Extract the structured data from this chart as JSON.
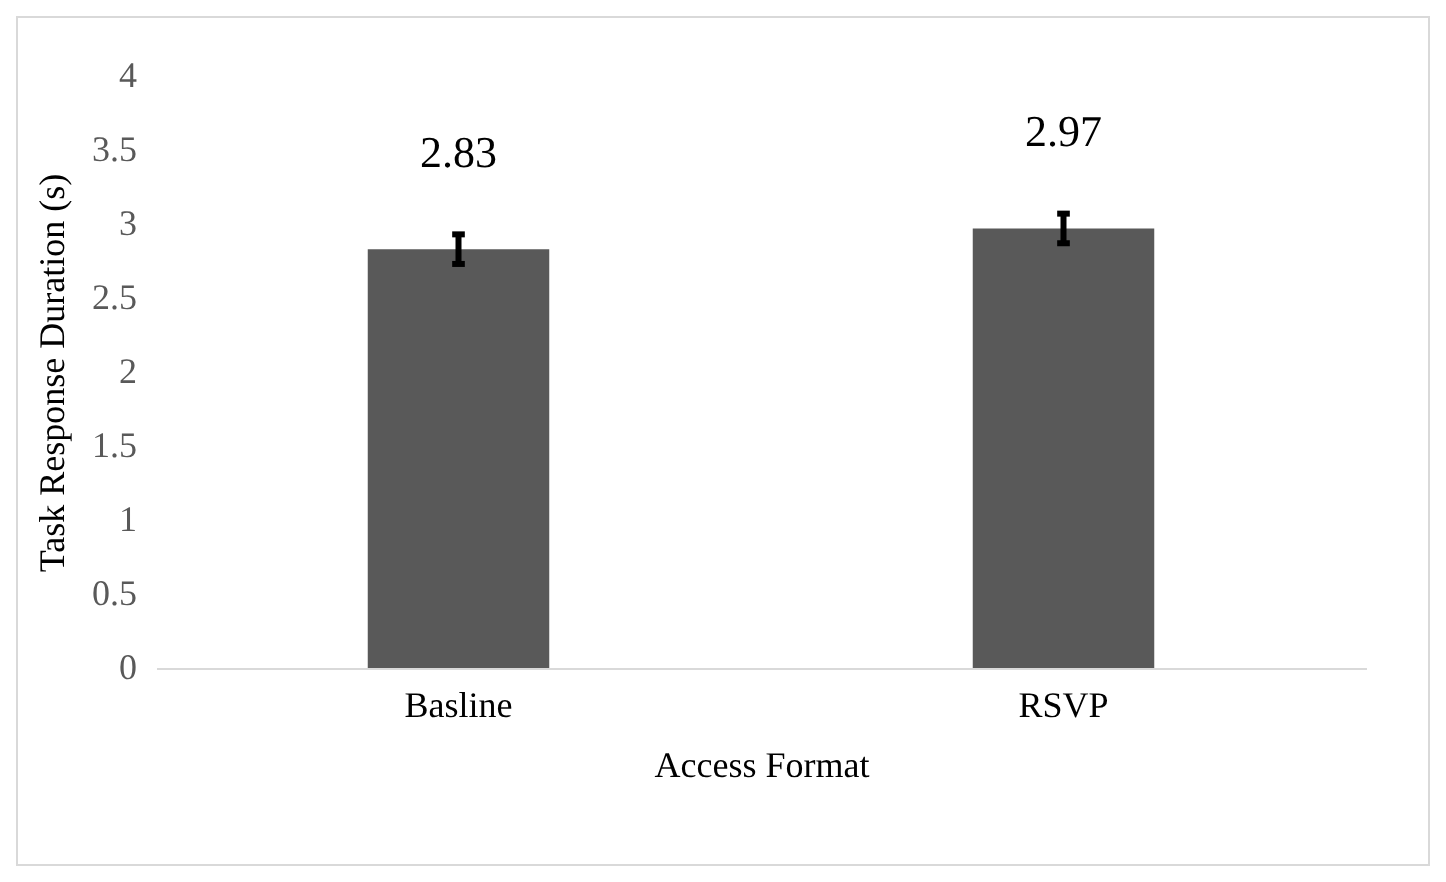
{
  "chart_data": {
    "type": "bar",
    "xlabel": "Access Format",
    "ylabel": "Task Response Duration (s)",
    "categories": [
      "Basline",
      "RSVP"
    ],
    "values": [
      2.83,
      2.97
    ],
    "color": "#595959",
    "errors": [
      0.1,
      0.1
    ],
    "ylim": [
      0,
      4
    ],
    "yticks": [
      0,
      0.5,
      1,
      1.5,
      2,
      2.5,
      3,
      3.5,
      4
    ],
    "data_labels": true,
    "grid": false
  }
}
